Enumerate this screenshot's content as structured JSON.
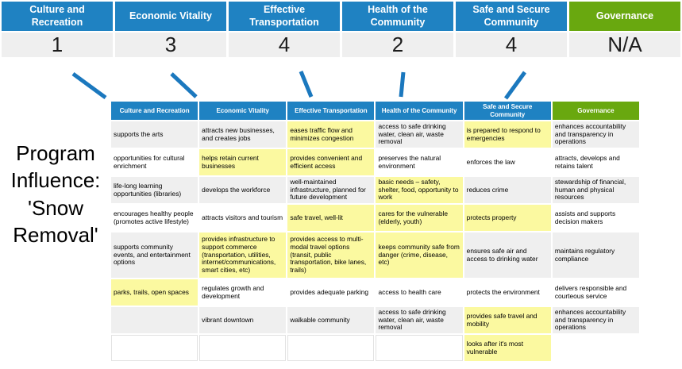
{
  "colors": {
    "header_blue": "#1F82C2",
    "header_green": "#69A80F",
    "highlight_yellow": "#FBF9A0",
    "row_gray": "#EFEFEF",
    "arrow_blue": "#1B78BE"
  },
  "program_label": "Program\nInfluence:\n'Snow\nRemoval'",
  "score_table": {
    "columns": [
      {
        "label": "Culture and Recreation",
        "score": "1",
        "color": "blue"
      },
      {
        "label": "Economic Vitality",
        "score": "3",
        "color": "blue"
      },
      {
        "label": "Effective Transportation",
        "score": "4",
        "color": "blue"
      },
      {
        "label": "Health of the Community",
        "score": "2",
        "color": "blue"
      },
      {
        "label": "Safe and Secure Community",
        "score": "4",
        "color": "blue"
      },
      {
        "label": "Governance",
        "score": "N/A",
        "color": "green"
      }
    ]
  },
  "matrix_table": {
    "headers": [
      {
        "label": "Culture and Recreation",
        "color": "blue"
      },
      {
        "label": "Economic Vitality",
        "color": "blue"
      },
      {
        "label": "Effective Transportation",
        "color": "blue"
      },
      {
        "label": "Health of the Community",
        "color": "blue"
      },
      {
        "label": "Safe and Secure Community",
        "color": "blue"
      },
      {
        "label": "Governance",
        "color": "green"
      }
    ],
    "rows": [
      [
        {
          "text": "supports the arts",
          "bg": "gray"
        },
        {
          "text": "attracts new businesses, and creates jobs",
          "bg": "gray"
        },
        {
          "text": "eases traffic flow and minimizes congestion",
          "bg": "yellow"
        },
        {
          "text": "access to safe drinking water, clean air, waste removal",
          "bg": "gray"
        },
        {
          "text": "is prepared to respond to emergencies",
          "bg": "yellow"
        },
        {
          "text": "enhances accountability and transparency in operations",
          "bg": "gray"
        }
      ],
      [
        {
          "text": "opportunities for cultural enrichment",
          "bg": "white"
        },
        {
          "text": "helps retain current businesses",
          "bg": "yellow"
        },
        {
          "text": "provides convenient and efficient access",
          "bg": "yellow"
        },
        {
          "text": "preserves the natural environment",
          "bg": "white"
        },
        {
          "text": "enforces the law",
          "bg": "white"
        },
        {
          "text": "attracts, develops and retains talent",
          "bg": "white"
        }
      ],
      [
        {
          "text": "life-long learning opportunities (libraries)",
          "bg": "gray"
        },
        {
          "text": "develops the workforce",
          "bg": "gray"
        },
        {
          "text": "well-maintained infrastructure, planned for future development",
          "bg": "gray"
        },
        {
          "text": "basic needs – safety, shelter, food, opportunity to work",
          "bg": "yellow"
        },
        {
          "text": "reduces crime",
          "bg": "gray"
        },
        {
          "text": "stewardship of financial, human and physical resources",
          "bg": "gray"
        }
      ],
      [
        {
          "text": "encourages healthy people (promotes active lifestyle)",
          "bg": "white"
        },
        {
          "text": "attracts visitors and tourism",
          "bg": "white"
        },
        {
          "text": "safe travel, well-lit",
          "bg": "yellow"
        },
        {
          "text": "cares for the vulnerable (elderly, youth)",
          "bg": "yellow"
        },
        {
          "text": "protects property",
          "bg": "yellow"
        },
        {
          "text": "assists and supports decision makers",
          "bg": "white"
        }
      ],
      [
        {
          "text": "supports community events, and entertainment options",
          "bg": "gray"
        },
        {
          "text": "provides infrastructure to support commerce (transportation, utilities, internet/communications, smart cities, etc)",
          "bg": "yellow"
        },
        {
          "text": "provides access to multi-modal travel options (transit, public transportation, bike lanes, trails)",
          "bg": "yellow"
        },
        {
          "text": "keeps community safe from danger (crime, disease, etc)",
          "bg": "yellow"
        },
        {
          "text": "ensures safe air and access to drinking water",
          "bg": "gray"
        },
        {
          "text": "maintains regulatory compliance",
          "bg": "gray"
        }
      ],
      [
        {
          "text": "parks, trails, open spaces",
          "bg": "yellow"
        },
        {
          "text": "regulates growth and development",
          "bg": "white"
        },
        {
          "text": "provides adequate parking",
          "bg": "white"
        },
        {
          "text": "access to health care",
          "bg": "white"
        },
        {
          "text": "protects the environment",
          "bg": "white"
        },
        {
          "text": "delivers responsible and courteous service",
          "bg": "white"
        }
      ],
      [
        {
          "text": "",
          "bg": "gray"
        },
        {
          "text": "vibrant downtown",
          "bg": "gray"
        },
        {
          "text": "walkable community",
          "bg": "gray"
        },
        {
          "text": "access to safe drinking water, clean air, waste removal",
          "bg": "gray"
        },
        {
          "text": "provides safe travel and mobility",
          "bg": "yellow"
        },
        {
          "text": "enhances accountability and transparency in operations",
          "bg": "gray"
        }
      ],
      [
        {
          "text": "",
          "bg": "empty"
        },
        {
          "text": "",
          "bg": "empty"
        },
        {
          "text": "",
          "bg": "empty"
        },
        {
          "text": "",
          "bg": "empty"
        },
        {
          "text": "looks after it's most vulnerable",
          "bg": "yellow"
        },
        {
          "text": "",
          "bg": "none"
        }
      ]
    ]
  }
}
